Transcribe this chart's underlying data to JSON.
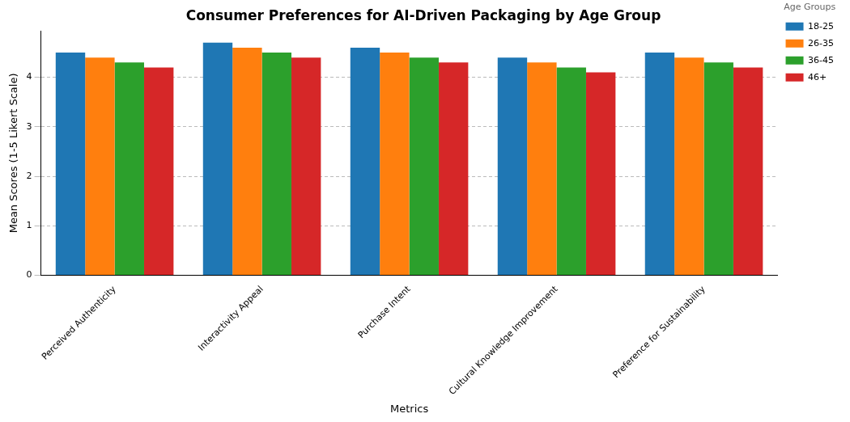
{
  "chart_data": {
    "type": "bar",
    "title": "Consumer Preferences for AI-Driven Packaging by Age Group",
    "xlabel": "Metrics",
    "ylabel": "Mean Scores (1-5 Likert Scale)",
    "legend_title": "Age Groups",
    "categories": [
      "Perceived Authenticity",
      "Interactivity Appeal",
      "Purchase Intent",
      "Cultural Knowledge Improvement",
      "Preference for Sustainability"
    ],
    "series": [
      {
        "name": "18-25",
        "color": "#1f77b4",
        "values": [
          4.5,
          4.7,
          4.6,
          4.4,
          4.5
        ]
      },
      {
        "name": "26-35",
        "color": "#ff7f0e",
        "values": [
          4.4,
          4.6,
          4.5,
          4.3,
          4.4
        ]
      },
      {
        "name": "36-45",
        "color": "#2ca02c",
        "values": [
          4.3,
          4.5,
          4.4,
          4.2,
          4.3
        ]
      },
      {
        "name": "46+",
        "color": "#d62728",
        "values": [
          4.2,
          4.4,
          4.3,
          4.1,
          4.2
        ]
      }
    ],
    "ylim": [
      0,
      4.935
    ],
    "yticks": [
      0,
      1,
      2,
      3,
      4
    ],
    "grid": "y",
    "legend": "right"
  }
}
